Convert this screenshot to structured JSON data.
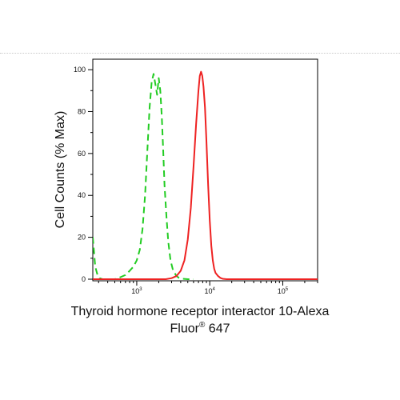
{
  "chart_data": {
    "type": "line",
    "title": "",
    "xlabel_line1": "Thyroid hormone receptor interactor 10-Alexa",
    "xlabel_line2_prefix": "Fluor",
    "xlabel_line2_reg": "®",
    "xlabel_line2_suffix": " 647",
    "ylabel": "Cell Counts (% Max)",
    "x_scale": "log",
    "xlim": [
      250,
      300000
    ],
    "ylim": [
      0,
      105
    ],
    "y_ticks": [
      0,
      20,
      40,
      60,
      80,
      100
    ],
    "y_tick_labels": [
      "0",
      "20",
      "40",
      "60",
      "80",
      "100"
    ],
    "x_ticks": [
      1000,
      10000,
      100000
    ],
    "x_tick_labels": [
      {
        "base": "10",
        "exp": "3"
      },
      {
        "base": "10",
        "exp": "4"
      },
      {
        "base": "10",
        "exp": "5"
      }
    ],
    "grid": false,
    "legend": "none",
    "series": [
      {
        "color": "#22cc22",
        "style": "dashed",
        "x": [
          250,
          270,
          290,
          310,
          340,
          380,
          430,
          500,
          600,
          700,
          800,
          900,
          1000,
          1100,
          1200,
          1300,
          1400,
          1500,
          1600,
          1700,
          1800,
          1900,
          2000,
          2100,
          2200,
          2300,
          2400,
          2550,
          2700,
          2900,
          3100,
          3300,
          3500,
          3800,
          4200,
          5000,
          6000
        ],
        "y": [
          20,
          6,
          2,
          0.5,
          0,
          0,
          0,
          0,
          1,
          2,
          4,
          6,
          9,
          14,
          24,
          40,
          62,
          82,
          94,
          98,
          93,
          88,
          96,
          90,
          78,
          62,
          45,
          30,
          18,
          9,
          5,
          3,
          1.5,
          0.6,
          0.2,
          0,
          0
        ]
      },
      {
        "color": "#ee2222",
        "style": "solid",
        "x": [
          250,
          2500,
          3000,
          3500,
          4000,
          4500,
          5000,
          5500,
          6000,
          6500,
          7000,
          7300,
          7600,
          7900,
          8200,
          8600,
          9000,
          9500,
          10000,
          10500,
          11000,
          11500,
          12000,
          13000,
          14000,
          15000,
          17000,
          20000,
          300000
        ],
        "y": [
          0,
          0,
          0.5,
          1.5,
          4,
          9,
          19,
          34,
          54,
          74,
          90,
          97,
          99,
          97,
          92,
          82,
          66,
          45,
          28,
          16,
          9,
          5,
          3,
          1.5,
          0.6,
          0.2,
          0,
          0,
          0
        ]
      }
    ]
  }
}
